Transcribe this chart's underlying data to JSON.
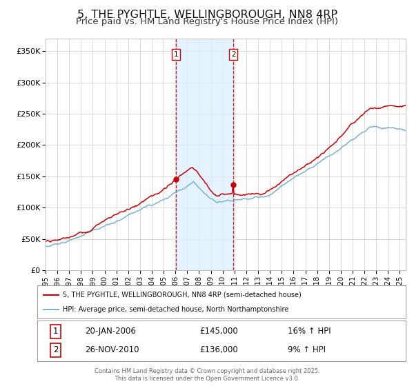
{
  "title": "5, THE PYGHTLE, WELLINGBOROUGH, NN8 4RP",
  "subtitle": "Price paid vs. HM Land Registry's House Price Index (HPI)",
  "title_fontsize": 11.5,
  "subtitle_fontsize": 9.5,
  "ylim": [
    0,
    370000
  ],
  "yticks": [
    0,
    50000,
    100000,
    150000,
    200000,
    250000,
    300000,
    350000
  ],
  "ytick_labels": [
    "£0",
    "£50K",
    "£100K",
    "£150K",
    "£200K",
    "£250K",
    "£300K",
    "£350K"
  ],
  "background_color": "#ffffff",
  "grid_color": "#cccccc",
  "red_line_color": "#cc0000",
  "blue_line_color": "#7ab0d4",
  "shade_color": "#ddeeff",
  "sale1_date": 2006.055,
  "sale1_price": 145000,
  "sale2_date": 2010.9,
  "sale2_price": 136000,
  "legend_red_label": "5, THE PYGHTLE, WELLINGBOROUGH, NN8 4RP (semi-detached house)",
  "legend_blue_label": "HPI: Average price, semi-detached house, North Northamptonshire",
  "table_row1": [
    "1",
    "20-JAN-2006",
    "£145,000",
    "16% ↑ HPI"
  ],
  "table_row2": [
    "2",
    "26-NOV-2010",
    "£136,000",
    "9% ↑ HPI"
  ],
  "footer_line1": "Contains HM Land Registry data © Crown copyright and database right 2025.",
  "footer_line2": "This data is licensed under the Open Government Licence v3.0.",
  "xmin": 1995.0,
  "xmax": 2025.5
}
